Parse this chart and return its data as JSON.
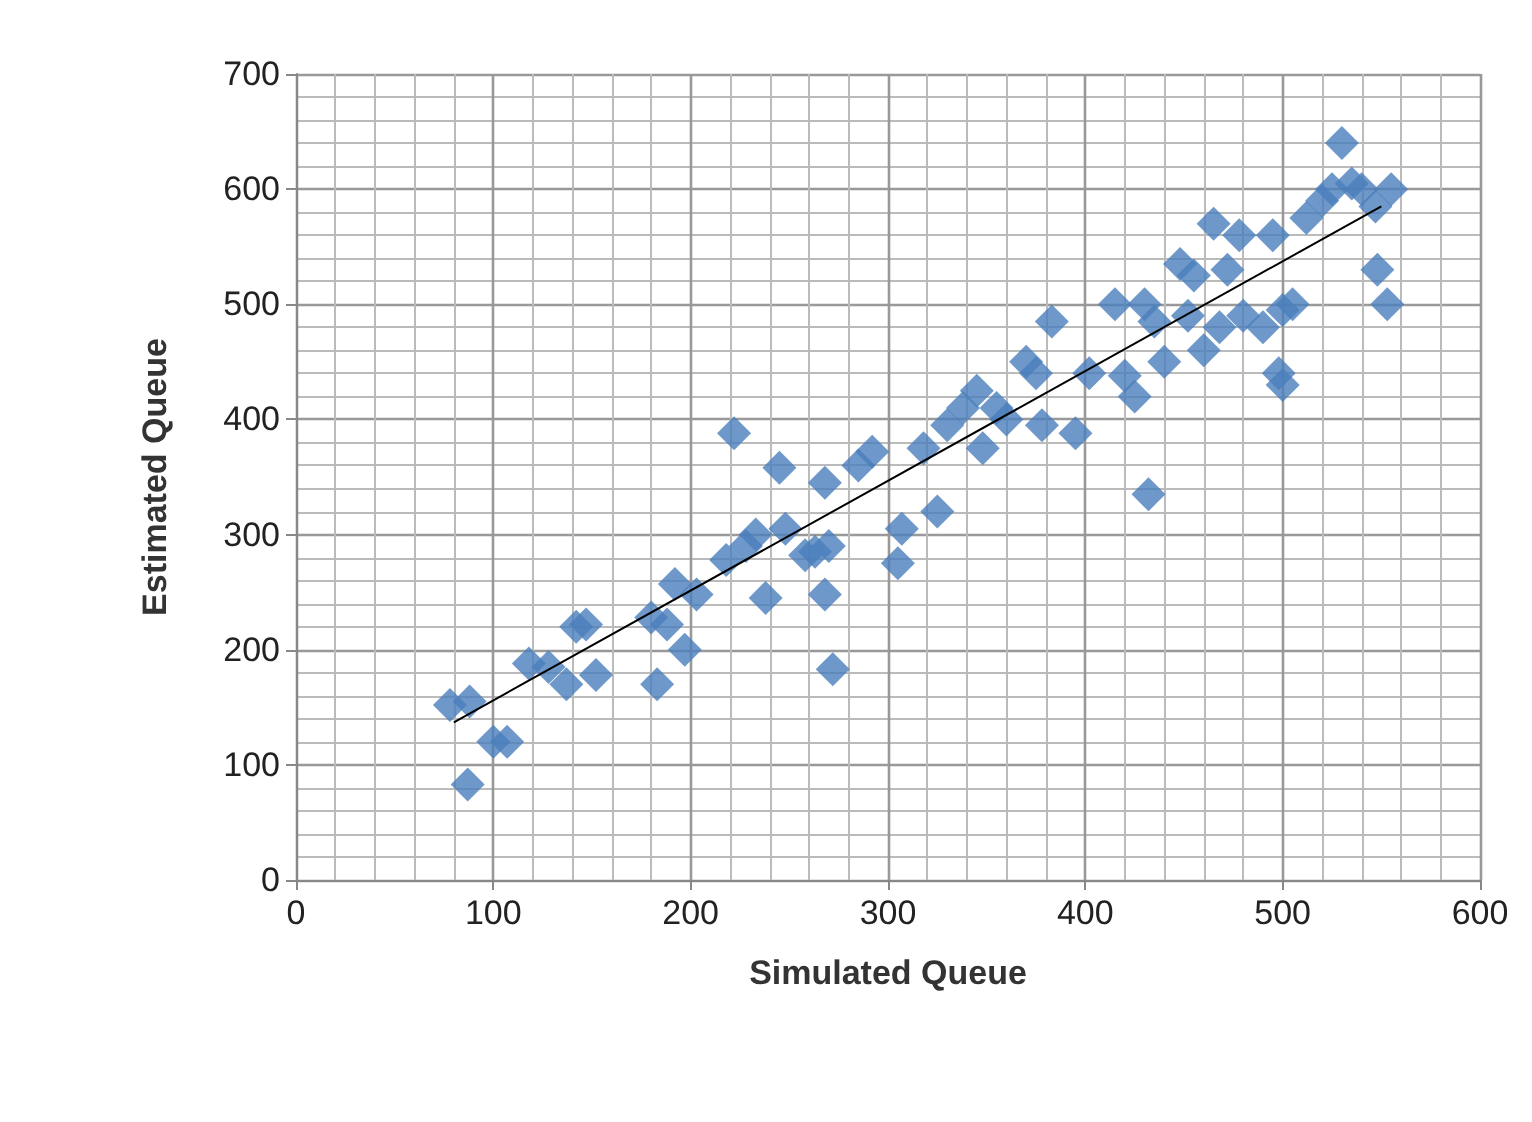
{
  "chart_data": {
    "type": "scatter",
    "xlabel": "Simulated Queue",
    "ylabel": "Estimated Queue",
    "xlim": [
      0,
      600
    ],
    "ylim": [
      0,
      700
    ],
    "xticks": [
      0,
      100,
      200,
      300,
      400,
      500,
      600
    ],
    "yticks": [
      0,
      100,
      200,
      300,
      400,
      500,
      600,
      700
    ],
    "grid": true,
    "marker": "diamond",
    "series": [
      {
        "color": "#4a7ebb",
        "x": [
          78,
          88,
          87,
          100,
          107,
          118,
          128,
          137,
          142,
          147,
          152,
          180,
          183,
          188,
          192,
          197,
          203,
          218,
          222,
          228,
          233,
          238,
          245,
          248,
          258,
          263,
          268,
          268,
          270,
          272,
          285,
          292,
          305,
          307,
          318,
          325,
          330,
          338,
          345,
          348,
          355,
          360,
          370,
          375,
          378,
          383,
          395,
          402,
          415,
          420,
          425,
          430,
          432,
          435,
          440,
          448,
          452,
          455,
          460,
          465,
          468,
          472,
          478,
          480,
          490,
          495,
          498,
          500,
          500,
          505,
          512,
          520,
          525,
          530,
          535,
          540,
          547,
          548,
          553,
          555
        ],
        "values": [
          152,
          155,
          83,
          120,
          120,
          188,
          185,
          170,
          220,
          222,
          178,
          228,
          170,
          222,
          257,
          200,
          248,
          278,
          388,
          290,
          300,
          245,
          358,
          305,
          282,
          285,
          248,
          345,
          290,
          183,
          360,
          372,
          275,
          305,
          375,
          320,
          395,
          410,
          425,
          375,
          410,
          400,
          450,
          440,
          395,
          485,
          388,
          440,
          500,
          438,
          420,
          500,
          335,
          485,
          450,
          535,
          490,
          525,
          460,
          570,
          480,
          530,
          560,
          490,
          480,
          560,
          440,
          430,
          495,
          500,
          575,
          590,
          600,
          640,
          605,
          600,
          585,
          530,
          500,
          600
        ]
      },
      {
        "type": "line",
        "color": "#000000",
        "x": [
          80,
          550
        ],
        "values": [
          137,
          585
        ],
        "marker": "none"
      }
    ]
  }
}
